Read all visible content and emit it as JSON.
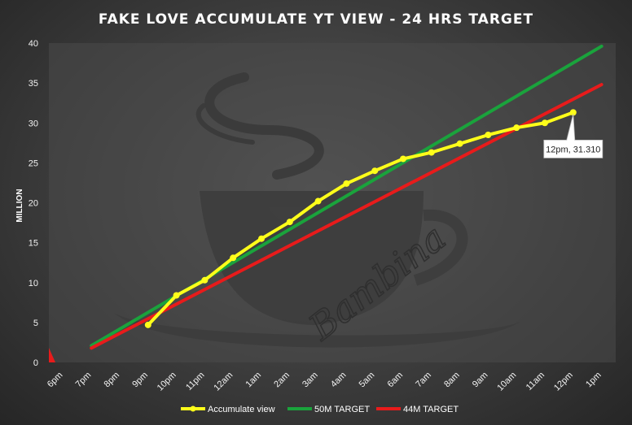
{
  "chart_data": {
    "type": "line",
    "title": "FAKE  LOVE  ACCUMULATE  YT  VIEW  -  24  HRS  TARGET",
    "ylabel": "MILLION",
    "xlabel": "",
    "ylim": [
      0,
      40
    ],
    "y_ticks": [
      0,
      5,
      10,
      15,
      20,
      25,
      30,
      35,
      40
    ],
    "categories": [
      "6pm",
      "7pm",
      "8pm",
      "9pm",
      "10pm",
      "11pm",
      "12am",
      "1am",
      "2am",
      "3am",
      "4am",
      "5am",
      "6am",
      "7am",
      "8am",
      "9am",
      "10am",
      "11am",
      "12pm",
      "1pm"
    ],
    "grid": false,
    "legend_position": "bottom",
    "series": [
      {
        "name": "Accumulate view",
        "color": "#ffff1a",
        "marker": true,
        "x": [
          "9pm",
          "10pm",
          "11pm",
          "12am",
          "1am",
          "2am",
          "3am",
          "4am",
          "5am",
          "6am",
          "7am",
          "8am",
          "9am",
          "10am",
          "11am",
          "12pm"
        ],
        "values": [
          4.7,
          8.4,
          10.3,
          13.1,
          15.5,
          17.6,
          20.2,
          22.4,
          24.0,
          25.5,
          26.3,
          27.4,
          28.5,
          29.4,
          30.0,
          31.31
        ]
      },
      {
        "name": "50M TARGET",
        "color": "#1aa33c",
        "marker": false,
        "x": [
          "7pm",
          "1pm"
        ],
        "values": [
          2.1,
          39.6
        ]
      },
      {
        "name": "44M TARGET",
        "color": "#e81b1b",
        "marker": false,
        "x": [
          "7pm",
          "1pm"
        ],
        "values": [
          1.8,
          34.8
        ]
      }
    ],
    "annotation": {
      "text": "12pm, 31.310",
      "x": "12pm",
      "y": 31.31
    }
  },
  "watermark": {
    "text": "Bambina",
    "icon": "coffee-cup-icon"
  }
}
